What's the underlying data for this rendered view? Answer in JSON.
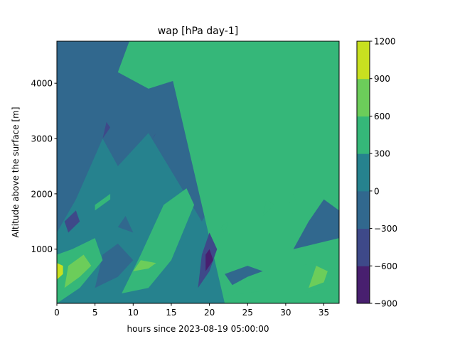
{
  "chart_data": {
    "type": "contour",
    "title": "wap [hPa day-1]",
    "xlabel": "hours since 2023-08-19 05:00:00",
    "ylabel": "Altitude above the surface [m]",
    "xlim": [
      0,
      37
    ],
    "ylim": [
      20,
      4760
    ],
    "x_ticks": [
      0,
      5,
      10,
      15,
      20,
      25,
      30,
      35
    ],
    "x_tick_labels": [
      "0",
      "5",
      "10",
      "15",
      "20",
      "25",
      "30",
      "35"
    ],
    "y_ticks": [
      1000,
      2000,
      3000,
      4000
    ],
    "y_tick_labels": [
      "1000",
      "2000",
      "3000",
      "4000"
    ],
    "colorbar": {
      "levels": [
        -900,
        -600,
        -300,
        0,
        300,
        600,
        900,
        1200
      ],
      "level_labels": [
        "−900",
        "−600",
        "−300",
        "0",
        "300",
        "600",
        "900",
        "1200"
      ],
      "colors": [
        "#481f6f",
        "#3e4989",
        "#31688e",
        "#26828e",
        "#35b779",
        "#6ccd5a",
        "#c8e020"
      ]
    },
    "background_band": [
      0,
      300
    ],
    "regions": [
      {
        "band": [
          -300,
          0
        ],
        "x": [
          0,
          2.5,
          6,
          8,
          12,
          19,
          23.5,
          28.5,
          33,
          37,
          37,
          32,
          27.5,
          24,
          21.5,
          18.5,
          13,
          7.5,
          4,
          1.5,
          0
        ],
        "y": [
          1300,
          1900,
          3000,
          2500,
          3100,
          1500,
          2600,
          3300,
          3050,
          3500,
          4760,
          4760,
          4760,
          4760,
          4760,
          4760,
          4760,
          4760,
          4760,
          4760,
          4760
        ]
      },
      {
        "band": [
          300,
          600
        ],
        "x": [
          14,
          20,
          20,
          12,
          8,
          9.5,
          12,
          14.5,
          17,
          19.5,
          23,
          28,
          30,
          33,
          36,
          37,
          37,
          31.5,
          26,
          22
        ],
        "y": [
          4760,
          4760,
          4250,
          3900,
          4200,
          4760,
          4760,
          4760,
          4760,
          4760,
          4760,
          4760,
          4760,
          4760,
          4760,
          4760,
          20,
          20,
          20,
          20
        ]
      },
      {
        "band": [
          -300,
          0
        ],
        "x": [
          31,
          37,
          37,
          35,
          33
        ],
        "y": [
          1000,
          1200,
          1700,
          1900,
          1500
        ]
      },
      {
        "band": [
          -300,
          0
        ],
        "x": [
          8,
          9,
          10
        ],
        "y": [
          1400,
          1600,
          1300
        ]
      },
      {
        "band": [
          -300,
          0
        ],
        "x": [
          5,
          8,
          10,
          8,
          6
        ],
        "y": [
          300,
          500,
          800,
          1100,
          900
        ]
      },
      {
        "band": [
          -300,
          0
        ],
        "x": [
          23,
          25,
          27,
          25,
          22
        ],
        "y": [
          350,
          500,
          600,
          700,
          550
        ]
      },
      {
        "band": [
          300,
          600
        ],
        "x": [
          0,
          3,
          6,
          5,
          2,
          0
        ],
        "y": [
          20,
          300,
          800,
          1200,
          1000,
          900
        ]
      },
      {
        "band": [
          600,
          900
        ],
        "x": [
          1,
          3,
          4.5,
          3.5,
          1.5
        ],
        "y": [
          300,
          500,
          700,
          900,
          700
        ]
      },
      {
        "band": [
          900,
          1200
        ],
        "x": [
          0,
          0.8,
          0.8,
          0
        ],
        "y": [
          450,
          550,
          700,
          750
        ]
      },
      {
        "band": [
          300,
          600
        ],
        "x": [
          8.5,
          12,
          15,
          18,
          17,
          14,
          11
        ],
        "y": [
          200,
          300,
          800,
          1800,
          2100,
          1800,
          900
        ]
      },
      {
        "band": [
          600,
          900
        ],
        "x": [
          10,
          12,
          13,
          11
        ],
        "y": [
          600,
          650,
          750,
          800
        ]
      },
      {
        "band": [
          -600,
          -300
        ],
        "x": [
          1.5,
          3,
          2.5,
          1
        ],
        "y": [
          1300,
          1500,
          1700,
          1500
        ]
      },
      {
        "band": [
          -600,
          -300
        ],
        "x": [
          6,
          7,
          6.5
        ],
        "y": [
          3000,
          3200,
          3300
        ]
      },
      {
        "band": [
          -600,
          -300
        ],
        "x": [
          12.5,
          13,
          12.8
        ],
        "y": [
          3000,
          3100,
          3050
        ]
      },
      {
        "band": [
          -600,
          -300
        ],
        "x": [
          18.5,
          20,
          21,
          20,
          19
        ],
        "y": [
          300,
          600,
          1000,
          1300,
          900
        ]
      },
      {
        "band": [
          -900,
          -600
        ],
        "x": [
          19.5,
          20.5,
          20,
          19.5
        ],
        "y": [
          600,
          800,
          1000,
          900
        ]
      },
      {
        "band": [
          300,
          600
        ],
        "x": [
          21.5,
          22.5,
          22
        ],
        "y": [
          1400,
          1500,
          1300
        ]
      },
      {
        "band": [
          300,
          600
        ],
        "x": [
          22,
          27,
          28,
          23
        ],
        "y": [
          150,
          250,
          300,
          300
        ]
      },
      {
        "band": [
          300,
          600
        ],
        "x": [
          5,
          7,
          7,
          5
        ],
        "y": [
          1700,
          1900,
          2000,
          1800
        ]
      },
      {
        "band": [
          300,
          600
        ],
        "x": [
          27,
          28.5,
          27.5
        ],
        "y": [
          1600,
          1800,
          1900
        ]
      },
      {
        "band": [
          300,
          600
        ],
        "x": [
          30,
          31.5,
          31,
          30
        ],
        "y": [
          1400,
          1800,
          2000,
          1700
        ]
      },
      {
        "band": [
          300,
          600
        ],
        "x": [
          32,
          36,
          37,
          35,
          32
        ],
        "y": [
          200,
          300,
          600,
          800,
          700
        ]
      },
      {
        "band": [
          600,
          900
        ],
        "x": [
          33,
          35,
          35.5,
          34
        ],
        "y": [
          300,
          400,
          600,
          700
        ]
      }
    ]
  }
}
